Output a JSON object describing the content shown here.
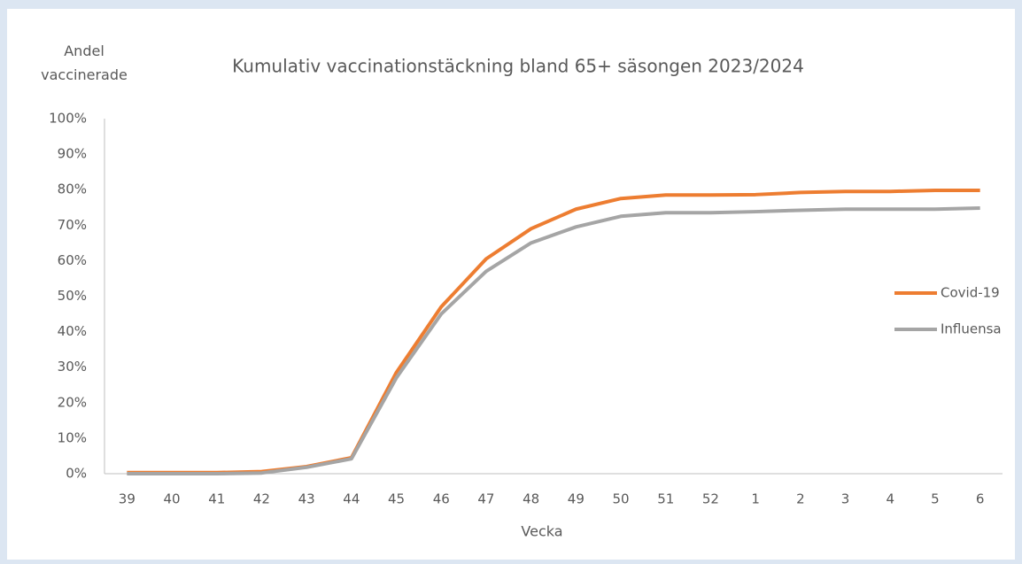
{
  "chart_data": {
    "type": "line",
    "title": "Kumulativ vaccinationstäckning bland 65+ säsongen 2023/2024",
    "y_label": "Andel vaccinerade",
    "x_label": "Vecka",
    "categories": [
      "39",
      "40",
      "41",
      "42",
      "43",
      "44",
      "45",
      "46",
      "47",
      "48",
      "49",
      "50",
      "51",
      "52",
      "1",
      "2",
      "3",
      "4",
      "5",
      "6"
    ],
    "series": [
      {
        "name": "Covid-19",
        "color": "#ed7d31",
        "values": [
          0.3,
          0.3,
          0.3,
          0.6,
          2,
          4.5,
          28.5,
          47,
          60.5,
          69,
          74.5,
          77.5,
          78.5,
          78.5,
          78.6,
          79.2,
          79.5,
          79.5,
          79.8,
          79.8
        ]
      },
      {
        "name": "Influensa",
        "color": "#a5a5a5",
        "values": [
          0,
          0,
          0,
          0.2,
          1.8,
          4.2,
          27,
          45,
          57,
          65,
          69.5,
          72.5,
          73.5,
          73.5,
          73.8,
          74.2,
          74.5,
          74.5,
          74.5,
          74.8
        ]
      }
    ],
    "ylim": [
      0,
      100
    ],
    "yticks": [
      {
        "value": 0,
        "label": "0%"
      },
      {
        "value": 10,
        "label": "10%"
      },
      {
        "value": 20,
        "label": "20%"
      },
      {
        "value": 30,
        "label": "30%"
      },
      {
        "value": 40,
        "label": "40%"
      },
      {
        "value": 50,
        "label": "50%"
      },
      {
        "value": 60,
        "label": "60%"
      },
      {
        "value": 70,
        "label": "70%"
      },
      {
        "value": 80,
        "label": "80%"
      },
      {
        "value": 90,
        "label": "90%"
      },
      {
        "value": 100,
        "label": "100%"
      }
    ],
    "grid": false,
    "legend_position": "right"
  }
}
